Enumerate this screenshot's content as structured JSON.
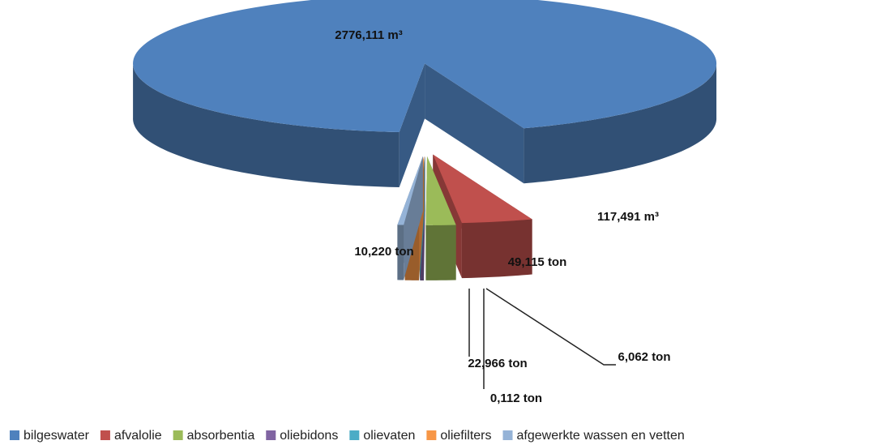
{
  "chart_data": {
    "type": "pie3d",
    "categories": [
      "bilgeswater",
      "afvalolie",
      "absorbentia",
      "oliebidons",
      "olievaten",
      "oliefilters",
      "afgewerkte wassen en vetten"
    ],
    "values": [
      2776.111,
      117.491,
      49.115,
      6.062,
      0.112,
      22.966,
      10.22
    ],
    "value_labels": [
      "2776,111 m³",
      "117,491 m³",
      "49,115 ton",
      "6,062 ton",
      "0,112 ton",
      "22,966 ton",
      "10,220 ton"
    ],
    "colors": [
      "#4f81bd",
      "#c0504d",
      "#9bbb59",
      "#8064a2",
      "#4bacc6",
      "#f79646",
      "#95b3d7"
    ],
    "legend": "bottom"
  }
}
